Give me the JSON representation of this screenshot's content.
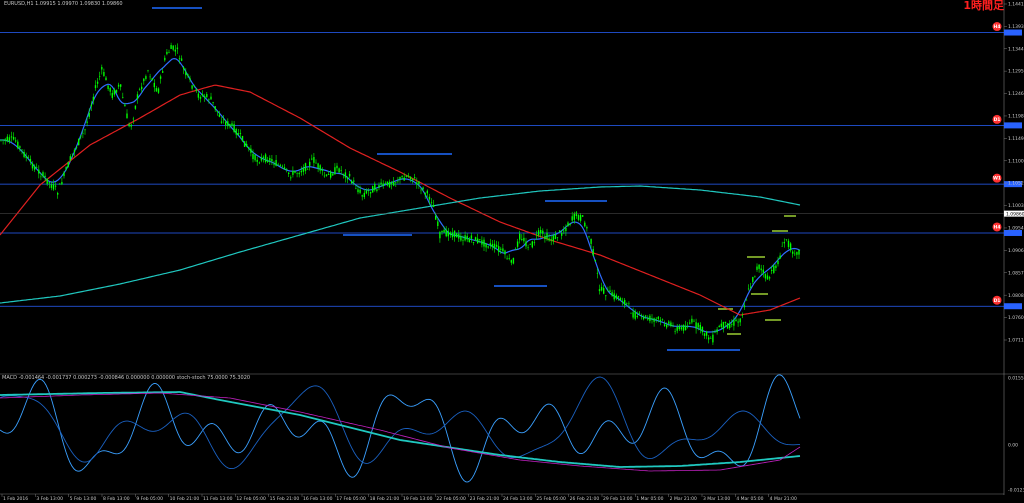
{
  "header": {
    "symbol_label": "EURUSD,H1 1.09915 1.09970 1.09830 1.09860",
    "brand_mark": "1時間足"
  },
  "indicator_panel": {
    "label": "MACD -0.001464 -0.001737 0.000273 -0.000846 0.000000 0.000000 stoch-stoch 75.0000 75.3020",
    "axis_ticks": [
      "0.015513",
      "0.00",
      "-0.012300"
    ]
  },
  "price_axis": {
    "labels": [
      "1.14416",
      "1.13930",
      "1.13443",
      "1.12957",
      "1.12469",
      "1.11983",
      "1.11496",
      "1.11009",
      "1.10523",
      "1.10035",
      "1.09549",
      "1.09062",
      "1.08576",
      "1.08088",
      "1.07602",
      "1.07114"
    ]
  },
  "time_axis": {
    "labels": [
      "1 Feb 2016",
      "3 Feb 13:00",
      "5 Feb 13:00",
      "8 Feb 13:00",
      "9 Feb 05:00",
      "10 Feb 21:00",
      "11 Feb 13:00",
      "12 Feb 05:00",
      "15 Feb 21:00",
      "16 Feb 13:00",
      "17 Feb 05:00",
      "18 Feb 21:00",
      "19 Feb 13:00",
      "22 Feb 05:00",
      "23 Feb 21:00",
      "24 Feb 13:00",
      "25 Feb 05:00",
      "26 Feb 21:00",
      "29 Feb 13:00",
      "1 Mar 05:00",
      "2 Mar 21:00",
      "3 Mar 13:00",
      "4 Mar 05:00",
      "4 Mar 21:00"
    ]
  },
  "levels": [
    {
      "value": "1.13796",
      "badge": "H4",
      "color": "#2962ff"
    },
    {
      "value": "1.11778",
      "badge": "D1",
      "color": "#2962ff"
    },
    {
      "value": "1.10501",
      "badge": "W1",
      "color": "#2962ff"
    },
    {
      "value": "1.09440",
      "badge": "H4",
      "color": "#2962ff"
    },
    {
      "value": "1.07848",
      "badge": "D1",
      "color": "#2962ff"
    }
  ],
  "current_price": "1.09860",
  "colors": {
    "background": "#000000",
    "candle": "#00ff00",
    "ma_fast": "#2f6dff",
    "ma_mid": "#e02020",
    "ma_slow": "#20c8c0",
    "level_line": "#2962ff",
    "badge_fill": "#ff3030",
    "zone_blue": "#1e6bff",
    "zone_green": "#9acd32"
  }
}
